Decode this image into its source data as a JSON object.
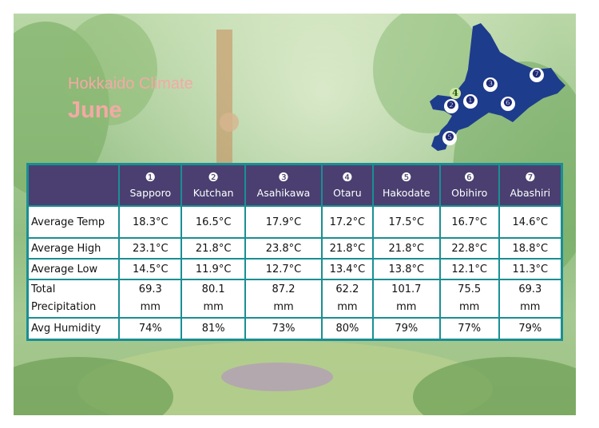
{
  "header": {
    "subtitle": "Hokkaido Climate",
    "month": "June"
  },
  "map": {
    "fill_color": "#1e3c8c",
    "markers": [
      "❶",
      "❷",
      "❸",
      "4",
      "❺",
      "❻",
      "❼"
    ]
  },
  "table": {
    "columns": [
      {
        "num": "❶",
        "name": "Sapporo"
      },
      {
        "num": "❷",
        "name": "Kutchan"
      },
      {
        "num": "❸",
        "name": "Asahikawa"
      },
      {
        "num": "❹",
        "name": "Otaru"
      },
      {
        "num": "❺",
        "name": "Hakodate"
      },
      {
        "num": "❻",
        "name": "Obihiro"
      },
      {
        "num": "❼",
        "name": "Abashiri"
      }
    ],
    "rows": [
      {
        "label": "Average Temp",
        "values": [
          "18.3°C",
          "16.5°C",
          "17.9°C",
          "17.2°C",
          "17.5°C",
          "16.7°C",
          "14.6°C"
        ]
      },
      {
        "label": "Average High",
        "values": [
          "23.1°C",
          "21.8°C",
          "23.8°C",
          "21.8°C",
          "21.8°C",
          "22.8°C",
          "18.8°C"
        ]
      },
      {
        "label": "Average Low",
        "values": [
          "14.5°C",
          "11.9°C",
          "12.7°C",
          "13.4°C",
          "13.8°C",
          "12.1°C",
          "11.3°C"
        ]
      },
      {
        "label_line1": "Total",
        "label_line2": "Precipitation",
        "values": [
          "69.3",
          "80.1",
          "87.2",
          "62.2",
          "101.7",
          "75.5",
          "69.3"
        ],
        "unit": "mm"
      },
      {
        "label": "Avg Humidity",
        "values": [
          "74%",
          "81%",
          "73%",
          "80%",
          "79%",
          "77%",
          "79%"
        ]
      }
    ]
  },
  "colors": {
    "header_bg": "#4a3f70",
    "border": "#1a8f93",
    "title": "#f4a9a5"
  }
}
